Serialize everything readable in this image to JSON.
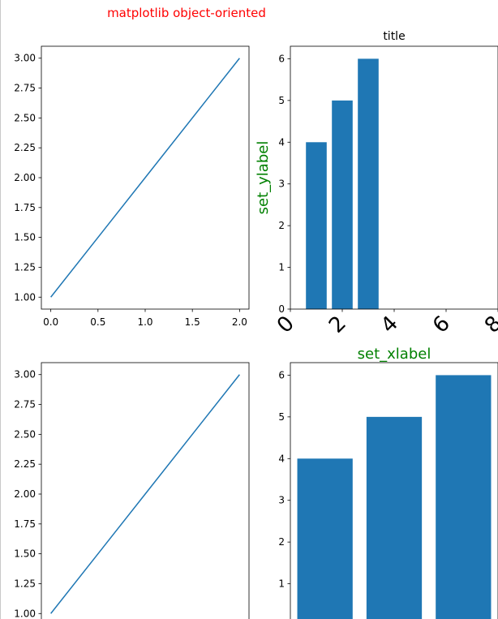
{
  "figure": {
    "suptitle": "matplotlib object-oriented",
    "suptitle_color": "#ff0000",
    "series_color": "#1f77b4",
    "label_color": "#008000"
  },
  "chart_data": [
    {
      "type": "line",
      "position": "top-left",
      "x": [
        0,
        1,
        2
      ],
      "y": [
        1,
        2,
        3
      ],
      "xlim": [
        -0.1,
        2.1
      ],
      "ylim": [
        0.9,
        3.1
      ],
      "xticks": [
        0.0,
        0.5,
        1.0,
        1.5,
        2.0
      ],
      "xtick_labels": [
        "0.0",
        "0.5",
        "1.0",
        "1.5",
        "2.0"
      ],
      "yticks": [
        1.0,
        1.25,
        1.5,
        1.75,
        2.0,
        2.25,
        2.5,
        2.75,
        3.0
      ],
      "ytick_labels": [
        "1.00",
        "1.25",
        "1.50",
        "1.75",
        "2.00",
        "2.25",
        "2.50",
        "2.75",
        "3.00"
      ],
      "grid": false
    },
    {
      "type": "bar",
      "position": "top-right",
      "title": "title",
      "xlabel": "set_xlabel",
      "ylabel": "set_ylabel",
      "categories": [
        1,
        2,
        3
      ],
      "values": [
        4,
        5,
        6
      ],
      "xlim": [
        0,
        8
      ],
      "ylim": [
        0,
        6.3
      ],
      "xticks": [
        0,
        2,
        4,
        6,
        8
      ],
      "xtick_labels": [
        "0",
        "2",
        "4",
        "6",
        "8"
      ],
      "xtick_rotation": "45",
      "yticks": [
        0,
        1,
        2,
        3,
        4,
        5,
        6
      ],
      "ytick_labels": [
        "0",
        "1",
        "2",
        "3",
        "4",
        "5",
        "6"
      ],
      "grid": false
    },
    {
      "type": "line",
      "position": "bottom-left",
      "x": [
        0,
        1,
        2
      ],
      "y": [
        1,
        2,
        3
      ],
      "xlim": [
        -0.1,
        2.1
      ],
      "ylim": [
        0.9,
        3.1
      ],
      "yticks": [
        1.0,
        1.25,
        1.5,
        1.75,
        2.0,
        2.25,
        2.5,
        2.75,
        3.0
      ],
      "ytick_labels": [
        "1.00",
        "1.25",
        "1.50",
        "1.75",
        "2.00",
        "2.25",
        "2.50",
        "2.75",
        "3.00"
      ],
      "grid": false
    },
    {
      "type": "bar",
      "position": "bottom-right",
      "categories": [
        1,
        2,
        3
      ],
      "values": [
        4,
        5,
        6
      ],
      "ylim": [
        0,
        6.3
      ],
      "yticks": [
        1,
        2,
        3,
        4,
        5,
        6
      ],
      "ytick_labels": [
        "1",
        "2",
        "3",
        "4",
        "5",
        "6"
      ],
      "grid": false
    }
  ]
}
